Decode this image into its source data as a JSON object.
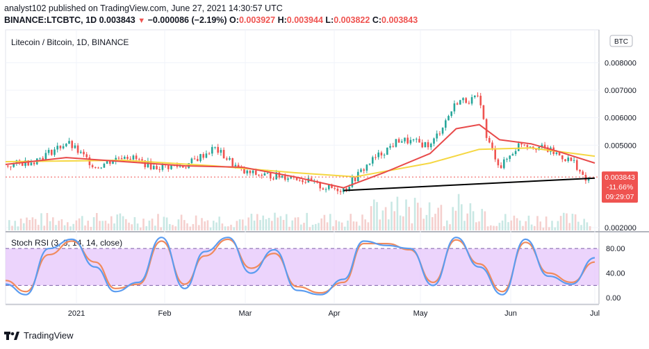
{
  "header": {
    "publish_line": "analyst102 published on TradingView.com, June 27, 2021 14:30:57 UTC",
    "symbol": "BINANCE:LTCBTC, 1D",
    "last": "0.003843",
    "change_arrow": "▼",
    "change": "−0.000086 (−2.19%)",
    "o_label": "O:",
    "o_value": "0.003927",
    "h_label": "H:",
    "h_value": "0.003944",
    "l_label": "L:",
    "l_value": "0.003822",
    "c_label": "C:",
    "c_value": "0.003843"
  },
  "footer": {
    "brand": "TradingView"
  },
  "colors": {
    "up": "#26a69a",
    "down": "#ef5350",
    "ma_fast": "#e84a4a",
    "ma_slow": "#f5d742",
    "trendline": "#000000",
    "stoch_k": "#5b9cf0",
    "stoch_d": "#f08a5d",
    "rsi_band": "#e6c6fb"
  },
  "chart_data": [
    {
      "type": "candlestick",
      "title": "Litecoin / Bitcoin, 1D, BINANCE",
      "currency_badge": "BTC",
      "y_ticks": [
        "0.008000",
        "0.007000",
        "0.006000",
        "0.005000",
        "0.002000"
      ],
      "y_ticks_values": [
        0.008,
        0.007,
        0.006,
        0.005,
        0.002
      ],
      "ylim": [
        0.0019,
        0.0092
      ],
      "x_ticks": [
        "2021",
        "Feb",
        "Mar",
        "Apr",
        "May",
        "Jun",
        "Jul"
      ],
      "price_label": {
        "value": "0.003843",
        "change": "-11.66%",
        "countdown": "09:29:07"
      },
      "x_start": "2020-12-05",
      "x_end": "2021-06-27",
      "series": [
        {
          "name": "close",
          "x": [
            "2020-12-05",
            "2020-12-15",
            "2020-12-26",
            "2021-01-05",
            "2021-01-15",
            "2021-01-25",
            "2021-02-05",
            "2021-02-15",
            "2021-02-25",
            "2021-03-05",
            "2021-03-15",
            "2021-03-25",
            "2021-04-01",
            "2021-04-10",
            "2021-04-20",
            "2021-05-01",
            "2021-05-10",
            "2021-05-18",
            "2021-05-20",
            "2021-05-25",
            "2021-06-01",
            "2021-06-10",
            "2021-06-20",
            "2021-06-23",
            "2021-06-27"
          ],
          "values": [
            0.00425,
            0.00445,
            0.0051,
            0.0042,
            0.00465,
            0.0042,
            0.00425,
            0.0049,
            0.004,
            0.0039,
            0.00385,
            0.00345,
            0.0034,
            0.0044,
            0.0052,
            0.005,
            0.0066,
            0.0067,
            0.0053,
            0.0042,
            0.0051,
            0.00485,
            0.00435,
            0.0037,
            0.00384
          ]
        },
        {
          "name": "ma_fast",
          "x": [
            "2020-12-05",
            "2020-12-26",
            "2021-01-15",
            "2021-02-05",
            "2021-02-25",
            "2021-03-15",
            "2021-04-01",
            "2021-04-15",
            "2021-05-01",
            "2021-05-10",
            "2021-05-18",
            "2021-05-25",
            "2021-06-05",
            "2021-06-15",
            "2021-06-27"
          ],
          "values": [
            0.0043,
            0.00455,
            0.0044,
            0.00425,
            0.0042,
            0.00385,
            0.00345,
            0.004,
            0.0047,
            0.0056,
            0.00575,
            0.0052,
            0.00505,
            0.00475,
            0.00435
          ]
        },
        {
          "name": "ma_slow",
          "x": [
            "2020-12-05",
            "2021-01-15",
            "2021-02-15",
            "2021-03-15",
            "2021-04-05",
            "2021-05-01",
            "2021-05-18",
            "2021-06-05",
            "2021-06-27"
          ],
          "values": [
            0.0044,
            0.00445,
            0.00425,
            0.004,
            0.00385,
            0.00435,
            0.00485,
            0.0049,
            0.0046
          ]
        },
        {
          "name": "trendline",
          "x": [
            "2021-04-01",
            "2021-06-27"
          ],
          "values": [
            0.00335,
            0.0038
          ]
        }
      ]
    },
    {
      "type": "line",
      "title": "Stoch RSI (3, 3, 14, 14, close)",
      "y_ticks": [
        "80.00",
        "40.00",
        "0.00"
      ],
      "y_ticks_values": [
        80,
        40,
        0
      ],
      "ylim": [
        -10,
        105
      ],
      "band": [
        20,
        80
      ],
      "x_start": "2020-12-05",
      "x_end": "2021-06-27",
      "series": [
        {
          "name": "k",
          "x": [
            "2020-12-05",
            "2020-12-12",
            "2020-12-20",
            "2020-12-28",
            "2021-01-05",
            "2021-01-12",
            "2021-01-20",
            "2021-01-28",
            "2021-02-05",
            "2021-02-12",
            "2021-02-20",
            "2021-02-28",
            "2021-03-08",
            "2021-03-16",
            "2021-03-24",
            "2021-04-01",
            "2021-04-08",
            "2021-04-16",
            "2021-04-24",
            "2021-05-02",
            "2021-05-10",
            "2021-05-18",
            "2021-05-26",
            "2021-06-03",
            "2021-06-11",
            "2021-06-19",
            "2021-06-27"
          ],
          "values": [
            22,
            5,
            80,
            95,
            50,
            10,
            25,
            98,
            15,
            75,
            98,
            40,
            78,
            12,
            5,
            30,
            92,
            85,
            80,
            20,
            98,
            50,
            5,
            95,
            35,
            22,
            65
          ]
        },
        {
          "name": "d",
          "x": [
            "2020-12-05",
            "2020-12-12",
            "2020-12-20",
            "2020-12-28",
            "2021-01-05",
            "2021-01-12",
            "2021-01-20",
            "2021-01-28",
            "2021-02-05",
            "2021-02-12",
            "2021-02-20",
            "2021-02-28",
            "2021-03-08",
            "2021-03-16",
            "2021-03-24",
            "2021-04-01",
            "2021-04-08",
            "2021-04-16",
            "2021-04-24",
            "2021-05-02",
            "2021-05-10",
            "2021-05-18",
            "2021-05-26",
            "2021-06-03",
            "2021-06-11",
            "2021-06-19",
            "2021-06-27"
          ],
          "values": [
            28,
            10,
            70,
            92,
            58,
            15,
            22,
            92,
            22,
            68,
            95,
            48,
            72,
            18,
            8,
            25,
            88,
            88,
            78,
            25,
            94,
            55,
            10,
            90,
            40,
            25,
            58
          ]
        }
      ]
    }
  ]
}
